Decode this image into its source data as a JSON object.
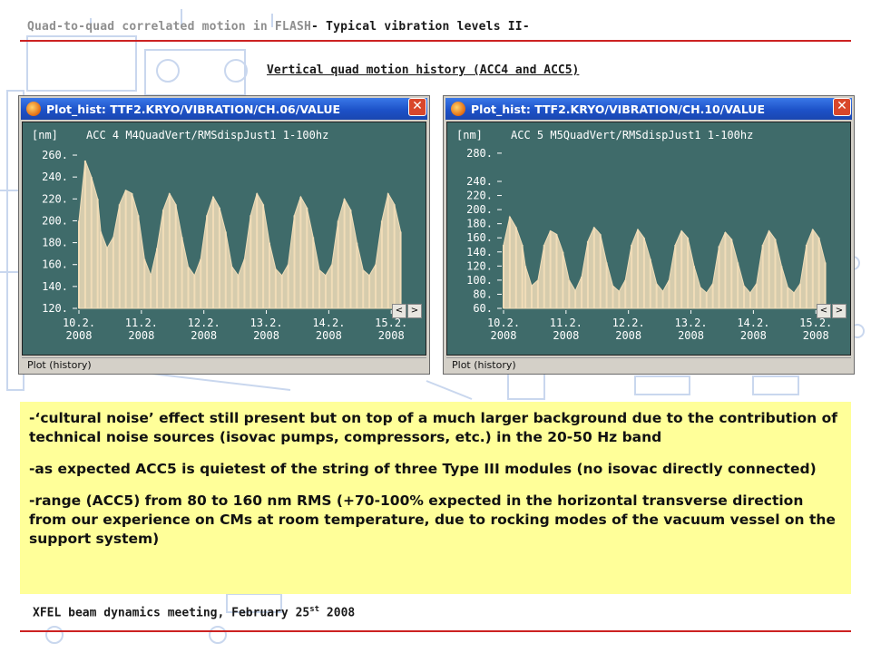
{
  "header": {
    "title_part1": "Quad-to-quad correlated motion in FLASH",
    "title_part2": "- Typical vibration levels II-"
  },
  "subtitle": "Vertical quad motion history (ACC4 and ACC5)",
  "colors": {
    "plot_bg": "#3f6b6a",
    "trace": "#f1ddb8",
    "axis_text": "#ffffff",
    "titlebar": "#1d52c8",
    "textbox_bg": "#ffff99",
    "rule": "#cc2222"
  },
  "plots": [
    {
      "window_title": "Plot_hist: TTF2.KRYO/VIBRATION/CH.06/VALUE",
      "close_label": "✕",
      "status": "Plot (history)",
      "scroll_left": "<",
      "scroll_right": ">",
      "chart_data": {
        "type": "area",
        "unit": "[nm]",
        "title": "ACC 4 M4QuadVert/RMSdispJust1 1-100hz",
        "yticks": [
          120,
          140,
          160,
          180,
          200,
          220,
          240,
          260
        ],
        "ylim": [
          120,
          265
        ],
        "xticks": [
          {
            "day": "10.2.",
            "year": "2008"
          },
          {
            "day": "11.2.",
            "year": "2008"
          },
          {
            "day": "12.2.",
            "year": "2008"
          },
          {
            "day": "13.2.",
            "year": "2008"
          },
          {
            "day": "14.2.",
            "year": "2008"
          },
          {
            "day": "15.2.",
            "year": "2008"
          }
        ],
        "xlim": [
          10,
          15.2
        ],
        "series": [
          {
            "x": [
              10.0,
              10.1,
              10.2,
              10.3,
              10.35,
              10.45,
              10.55,
              10.65,
              10.75,
              10.85,
              10.95,
              11.05,
              11.15,
              11.25,
              11.35,
              11.45,
              11.55,
              11.65,
              11.75,
              11.85,
              11.95,
              12.05,
              12.15,
              12.25,
              12.35,
              12.45,
              12.55,
              12.65,
              12.75,
              12.85,
              12.95,
              13.05,
              13.15,
              13.25,
              13.35,
              13.45,
              13.55,
              13.65,
              13.75,
              13.85,
              13.95,
              14.05,
              14.15,
              14.25,
              14.35,
              14.45,
              14.55,
              14.65,
              14.75,
              14.85,
              14.95,
              15.05,
              15.15
            ],
            "y": [
              200,
              255,
              240,
              220,
              190,
              175,
              185,
              215,
              228,
              225,
              205,
              165,
              150,
              175,
              210,
              225,
              215,
              185,
              158,
              150,
              165,
              205,
              222,
              212,
              190,
              158,
              150,
              165,
              205,
              225,
              215,
              180,
              156,
              150,
              160,
              205,
              222,
              212,
              185,
              155,
              150,
              160,
              200,
              220,
              210,
              180,
              155,
              150,
              160,
              200,
              225,
              215,
              190
            ]
          }
        ]
      }
    },
    {
      "window_title": "Plot_hist: TTF2.KRYO/VIBRATION/CH.10/VALUE",
      "close_label": "✕",
      "status": "Plot (history)",
      "scroll_left": "<",
      "scroll_right": ">",
      "chart_data": {
        "type": "area",
        "unit": "[nm]",
        "title": "ACC 5 M5QuadVert/RMSdispJust1 1-100hz",
        "yticks": [
          60,
          80,
          100,
          120,
          140,
          160,
          180,
          200,
          220,
          240,
          280
        ],
        "ylim": [
          60,
          285
        ],
        "xticks": [
          {
            "day": "10.2.",
            "year": "2008"
          },
          {
            "day": "11.2.",
            "year": "2008"
          },
          {
            "day": "12.2.",
            "year": "2008"
          },
          {
            "day": "13.2.",
            "year": "2008"
          },
          {
            "day": "14.2.",
            "year": "2008"
          },
          {
            "day": "15.2.",
            "year": "2008"
          }
        ],
        "xlim": [
          10,
          15.2
        ],
        "series": [
          {
            "x": [
              10.0,
              10.1,
              10.2,
              10.3,
              10.35,
              10.45,
              10.55,
              10.65,
              10.75,
              10.85,
              10.95,
              11.05,
              11.15,
              11.25,
              11.35,
              11.45,
              11.55,
              11.65,
              11.75,
              11.85,
              11.95,
              12.05,
              12.15,
              12.25,
              12.35,
              12.45,
              12.55,
              12.65,
              12.75,
              12.85,
              12.95,
              13.05,
              13.15,
              13.25,
              13.35,
              13.45,
              13.55,
              13.65,
              13.75,
              13.85,
              13.95,
              14.05,
              14.15,
              14.25,
              14.35,
              14.45,
              14.55,
              14.65,
              14.75,
              14.85,
              14.95,
              15.05,
              15.15
            ],
            "y": [
              150,
              190,
              175,
              150,
              120,
              92,
              100,
              150,
              170,
              165,
              140,
              100,
              85,
              105,
              155,
              175,
              165,
              125,
              92,
              84,
              100,
              150,
              172,
              160,
              130,
              95,
              84,
              100,
              150,
              170,
              160,
              120,
              90,
              82,
              95,
              148,
              168,
              158,
              125,
              92,
              82,
              95,
              150,
              170,
              158,
              120,
              90,
              82,
              95,
              150,
              172,
              160,
              125
            ]
          }
        ]
      }
    }
  ],
  "body_paragraphs": [
    "-‘cultural noise’ effect still present but on top of a much larger background due to the contribution of technical noise sources (isovac pumps, compressors, etc.) in the 20-50 Hz band",
    "-as expected ACC5 is quietest of the string of three Type III modules (no isovac directly connected)",
    "-range (ACC5) from 80 to 160 nm RMS (+70-100% expected in the horizontal transverse direction from our experience on CMs at room temperature, due to rocking modes of the vacuum vessel on the support system)"
  ],
  "footer": {
    "text": "XFEL beam dynamics meeting, February 25",
    "sup": "st",
    "year": " 2008"
  }
}
